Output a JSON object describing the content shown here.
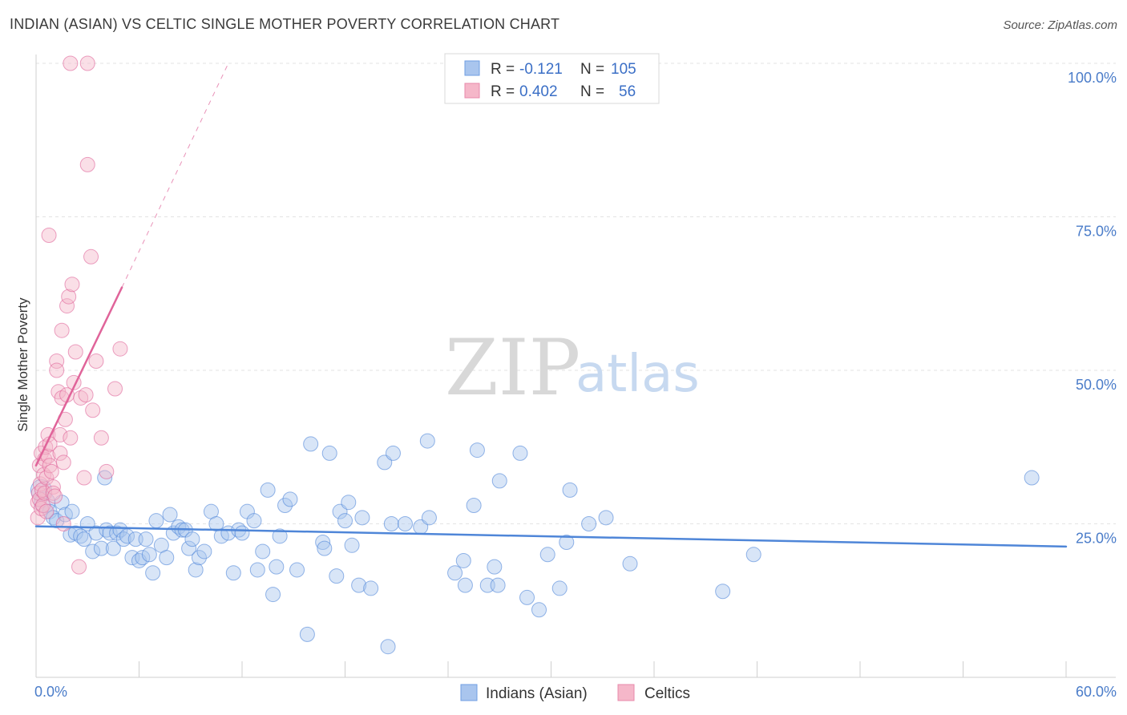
{
  "header": {
    "title": "INDIAN (ASIAN) VS CELTIC SINGLE MOTHER POVERTY CORRELATION CHART",
    "source": "Source: ZipAtlas.com"
  },
  "watermark": {
    "zip": "ZIP",
    "atlas": "atlas"
  },
  "legend": {
    "r_label": "R =",
    "n_label": "N =",
    "entries": [
      {
        "r": "-0.121",
        "n": "105",
        "color": "#a9c5ee"
      },
      {
        "r": "0.402",
        "n": "56",
        "color": "#f5b7c9"
      }
    ]
  },
  "bottom_legend": {
    "items": [
      {
        "label": "Indians (Asian)",
        "color": "#a9c5ee"
      },
      {
        "label": "Celtics",
        "color": "#f5b7c9"
      }
    ]
  },
  "chart_data": {
    "type": "scatter",
    "title": "INDIAN (ASIAN) VS CELTIC SINGLE MOTHER POVERTY CORRELATION CHART",
    "ylabel": "Single Mother Poverty",
    "xlabel": "",
    "xlim": [
      0,
      60
    ],
    "ylim": [
      0,
      100
    ],
    "x_ticks": [
      "0.0%",
      "60.0%"
    ],
    "y_ticks": [
      {
        "value": 25,
        "label": "25.0%"
      },
      {
        "value": 50,
        "label": "50.0%"
      },
      {
        "value": 75,
        "label": "75.0%"
      },
      {
        "value": 100,
        "label": "100.0%"
      }
    ],
    "grid": true,
    "series": [
      {
        "name": "Indians (Asian)",
        "color": "#4f86d8",
        "fill": "#a9c5ee",
        "r": -0.121,
        "n": 105,
        "trend": {
          "x0": 0,
          "y0": 24.6,
          "x1": 60,
          "y1": 21.3
        },
        "points": [
          [
            0.3,
            30.5
          ],
          [
            0.5,
            28.5
          ],
          [
            0.8,
            27.0
          ],
          [
            1.0,
            26.0
          ],
          [
            1.2,
            25.5
          ],
          [
            1.5,
            28.5
          ],
          [
            1.7,
            26.5
          ],
          [
            2.0,
            23.2
          ],
          [
            2.1,
            27.0
          ],
          [
            2.3,
            23.5
          ],
          [
            2.6,
            23.0
          ],
          [
            2.8,
            22.5
          ],
          [
            3.0,
            25.0
          ],
          [
            3.3,
            20.5
          ],
          [
            3.5,
            23.5
          ],
          [
            3.8,
            21.0
          ],
          [
            4.1,
            24.0
          ],
          [
            4.3,
            23.5
          ],
          [
            4.5,
            21.0
          ],
          [
            4.7,
            23.5
          ],
          [
            4.9,
            24.0
          ],
          [
            5.1,
            22.5
          ],
          [
            5.3,
            23.0
          ],
          [
            5.6,
            19.5
          ],
          [
            5.8,
            22.5
          ],
          [
            6.0,
            19.0
          ],
          [
            6.2,
            19.5
          ],
          [
            6.4,
            22.5
          ],
          [
            6.6,
            20.0
          ],
          [
            6.8,
            17.0
          ],
          [
            7.0,
            25.5
          ],
          [
            7.3,
            21.5
          ],
          [
            7.6,
            19.5
          ],
          [
            7.8,
            26.5
          ],
          [
            8.0,
            23.5
          ],
          [
            8.3,
            24.5
          ],
          [
            8.5,
            24.0
          ],
          [
            8.7,
            24.0
          ],
          [
            8.9,
            21.0
          ],
          [
            9.1,
            22.5
          ],
          [
            9.3,
            17.5
          ],
          [
            9.5,
            19.5
          ],
          [
            9.8,
            20.5
          ],
          [
            10.2,
            27.0
          ],
          [
            10.5,
            25.0
          ],
          [
            10.8,
            23.0
          ],
          [
            11.2,
            23.5
          ],
          [
            11.5,
            17.0
          ],
          [
            11.8,
            24.0
          ],
          [
            12.0,
            23.5
          ],
          [
            12.3,
            27.0
          ],
          [
            12.7,
            25.5
          ],
          [
            12.9,
            17.5
          ],
          [
            13.2,
            20.5
          ],
          [
            13.5,
            30.5
          ],
          [
            13.8,
            13.5
          ],
          [
            14.0,
            18.0
          ],
          [
            14.2,
            23.0
          ],
          [
            14.5,
            28.0
          ],
          [
            14.8,
            29.0
          ],
          [
            15.2,
            17.5
          ],
          [
            16.0,
            38.0
          ],
          [
            15.8,
            7.0
          ],
          [
            16.7,
            22.0
          ],
          [
            16.8,
            21.0
          ],
          [
            17.1,
            36.5
          ],
          [
            17.5,
            16.5
          ],
          [
            17.7,
            27.0
          ],
          [
            18.0,
            25.5
          ],
          [
            18.2,
            28.5
          ],
          [
            18.4,
            21.5
          ],
          [
            18.8,
            15.0
          ],
          [
            19.0,
            26.0
          ],
          [
            19.5,
            14.5
          ],
          [
            20.3,
            35.0
          ],
          [
            20.8,
            36.5
          ],
          [
            20.7,
            25.0
          ],
          [
            20.5,
            5.0
          ],
          [
            21.5,
            25.0
          ],
          [
            22.4,
            24.5
          ],
          [
            22.8,
            38.5
          ],
          [
            22.9,
            26.0
          ],
          [
            24.4,
            17.0
          ],
          [
            24.9,
            19.0
          ],
          [
            25.0,
            15.0
          ],
          [
            25.5,
            28.0
          ],
          [
            25.7,
            37.0
          ],
          [
            26.3,
            15.0
          ],
          [
            26.7,
            18.0
          ],
          [
            26.9,
            15.0
          ],
          [
            27.0,
            32.0
          ],
          [
            28.2,
            36.5
          ],
          [
            28.6,
            13.0
          ],
          [
            29.3,
            11.0
          ],
          [
            29.8,
            20.0
          ],
          [
            30.5,
            14.5
          ],
          [
            30.9,
            22.0
          ],
          [
            31.1,
            30.5
          ],
          [
            32.2,
            25.0
          ],
          [
            33.2,
            26.0
          ],
          [
            34.6,
            18.5
          ],
          [
            40.0,
            14.0
          ],
          [
            41.8,
            20.0
          ],
          [
            58.0,
            32.5
          ],
          [
            4.0,
            32.5
          ]
        ]
      },
      {
        "name": "Celtics",
        "color": "#e0649a",
        "fill": "#f5b7c9",
        "r": 0.402,
        "n": 56,
        "trend": {
          "x0": 0,
          "y0": 34.5,
          "x1": 5.0,
          "y1": 63.5,
          "dash_to_x": 11.2,
          "dash_to_y": 100
        },
        "points": [
          [
            0.1,
            28.5
          ],
          [
            0.1,
            26.0
          ],
          [
            0.15,
            30.0
          ],
          [
            0.2,
            29.0
          ],
          [
            0.2,
            34.5
          ],
          [
            0.25,
            31.5
          ],
          [
            0.3,
            27.5
          ],
          [
            0.3,
            36.5
          ],
          [
            0.35,
            30.5
          ],
          [
            0.4,
            28.0
          ],
          [
            0.45,
            33.0
          ],
          [
            0.5,
            35.5
          ],
          [
            0.5,
            30.0
          ],
          [
            0.55,
            37.5
          ],
          [
            0.6,
            27.0
          ],
          [
            0.6,
            32.5
          ],
          [
            0.7,
            36.0
          ],
          [
            0.7,
            39.5
          ],
          [
            0.75,
            72.0
          ],
          [
            0.8,
            38.0
          ],
          [
            0.8,
            34.5
          ],
          [
            0.9,
            33.5
          ],
          [
            1.0,
            31.0
          ],
          [
            1.0,
            30.0
          ],
          [
            1.1,
            29.5
          ],
          [
            1.2,
            51.5
          ],
          [
            1.2,
            50.0
          ],
          [
            1.3,
            46.5
          ],
          [
            1.4,
            39.5
          ],
          [
            1.4,
            36.5
          ],
          [
            1.5,
            45.5
          ],
          [
            1.5,
            56.5
          ],
          [
            1.6,
            35.0
          ],
          [
            1.6,
            25.0
          ],
          [
            1.7,
            42.0
          ],
          [
            1.8,
            46.0
          ],
          [
            1.8,
            60.5
          ],
          [
            1.9,
            62.0
          ],
          [
            2.0,
            39.0
          ],
          [
            2.1,
            64.0
          ],
          [
            2.2,
            48.0
          ],
          [
            2.3,
            53.0
          ],
          [
            2.5,
            18.0
          ],
          [
            2.6,
            45.5
          ],
          [
            2.8,
            32.5
          ],
          [
            2.9,
            46.0
          ],
          [
            3.0,
            83.5
          ],
          [
            3.2,
            68.5
          ],
          [
            3.3,
            43.5
          ],
          [
            3.5,
            51.5
          ],
          [
            3.8,
            39.0
          ],
          [
            4.1,
            33.5
          ],
          [
            4.6,
            47.0
          ],
          [
            4.9,
            53.5
          ],
          [
            2.0,
            100.0
          ],
          [
            3.0,
            100.0
          ]
        ]
      }
    ]
  }
}
